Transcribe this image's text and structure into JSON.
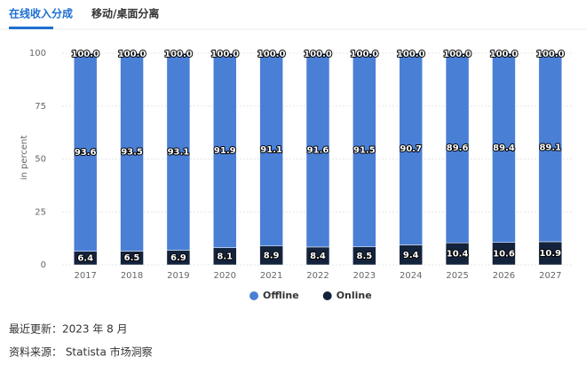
{
  "tabs": [
    "在线收入分成",
    "移动/桌面分离"
  ],
  "chart_data": {
    "type": "bar",
    "stacked": true,
    "y_label": "in percent",
    "categories": [
      "2017",
      "2018",
      "2019",
      "2020",
      "2021",
      "2022",
      "2023",
      "2024",
      "2025",
      "2026",
      "2027"
    ],
    "series": [
      {
        "name": "Offline",
        "color": "#4a7fd6",
        "values": [
          93.6,
          93.5,
          93.1,
          91.9,
          91.1,
          91.6,
          91.5,
          90.7,
          89.6,
          89.4,
          89.1
        ]
      },
      {
        "name": "Online",
        "color": "#14233c",
        "values": [
          6.4,
          6.5,
          6.9,
          8.1,
          8.9,
          8.4,
          8.5,
          9.4,
          10.4,
          10.6,
          10.9
        ]
      }
    ],
    "totals": {
      "values": [
        100,
        100,
        100,
        100,
        100,
        100,
        100,
        100,
        100,
        100,
        100
      ],
      "value_labels": [
        "100.0",
        "100.0",
        "100.0",
        "100.0",
        "100.0",
        "100.0",
        "100.0",
        "100.0",
        "100.0",
        "100.0",
        "100.0"
      ]
    },
    "ylim": [
      0,
      100
    ],
    "yticks": [
      0,
      25,
      50,
      75,
      100
    ],
    "grid": true
  },
  "footer": {
    "updated": "最近更新：2023 年 8 月",
    "source": "资料来源： Statista 市场洞察"
  }
}
